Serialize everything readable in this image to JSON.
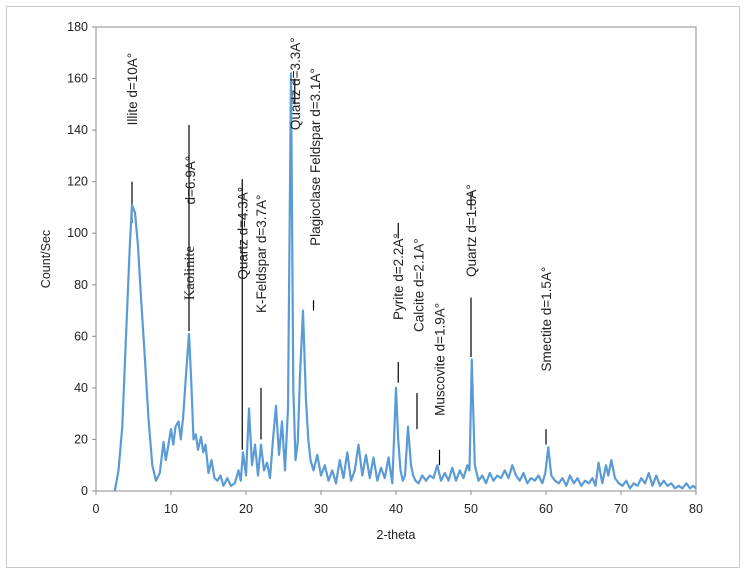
{
  "chart_data": {
    "type": "line",
    "title": "",
    "xlabel": "2-theta",
    "ylabel": "Count/Sec",
    "xlim": [
      0,
      80
    ],
    "ylim": [
      0,
      180
    ],
    "xticks": [
      0,
      10,
      20,
      30,
      40,
      50,
      60,
      70,
      80
    ],
    "yticks": [
      0,
      20,
      40,
      60,
      80,
      100,
      120,
      140,
      160,
      180
    ],
    "grid": false,
    "legend": "none",
    "line_color": "#5b9bd5",
    "series": [
      {
        "x": [
          2.5,
          3.0,
          3.5,
          4.0,
          4.5,
          4.8,
          5.2,
          5.6,
          6.0,
          6.5,
          7.0,
          7.5,
          8.0,
          8.5,
          9.0,
          9.3,
          9.6,
          10.0,
          10.3,
          10.6,
          11.0,
          11.3,
          11.6,
          12.0,
          12.4,
          12.7,
          13.0,
          13.3,
          13.6,
          14.0,
          14.3,
          14.6,
          15.0,
          15.4,
          15.8,
          16.2,
          16.6,
          17.0,
          17.5,
          18.0,
          18.5,
          19.0,
          19.3,
          19.6,
          20.0,
          20.4,
          20.8,
          21.2,
          21.6,
          22.0,
          22.4,
          22.8,
          23.2,
          23.6,
          24.0,
          24.4,
          24.8,
          25.2,
          25.6,
          26.0,
          26.3,
          26.6,
          26.9,
          27.2,
          27.6,
          28.0,
          28.3,
          28.6,
          29.0,
          29.5,
          30.0,
          30.5,
          31.0,
          31.5,
          32.0,
          32.5,
          33.0,
          33.5,
          34.0,
          34.5,
          35.0,
          35.5,
          36.0,
          36.5,
          37.0,
          37.5,
          38.0,
          38.5,
          39.0,
          39.5,
          40.0,
          40.3,
          40.6,
          40.9,
          41.2,
          41.6,
          42.0,
          42.3,
          42.6,
          43.0,
          43.5,
          44.0,
          44.5,
          45.0,
          45.5,
          46.0,
          46.5,
          47.0,
          47.5,
          48.0,
          48.5,
          49.0,
          49.5,
          49.8,
          50.1,
          50.5,
          51.0,
          51.5,
          52.0,
          52.5,
          53.0,
          53.5,
          54.0,
          54.5,
          55.0,
          55.5,
          56.0,
          56.5,
          57.0,
          57.5,
          58.0,
          58.5,
          59.0,
          59.5,
          59.9,
          60.3,
          60.7,
          61.2,
          61.7,
          62.2,
          62.7,
          63.2,
          63.7,
          64.2,
          64.7,
          65.2,
          65.7,
          66.2,
          66.6,
          67.0,
          67.5,
          68.0,
          68.3,
          68.7,
          69.2,
          69.7,
          70.2,
          70.7,
          71.2,
          71.7,
          72.2,
          72.7,
          73.2,
          73.7,
          74.2,
          74.7,
          75.2,
          75.7,
          76.2,
          76.7,
          77.2,
          77.7,
          78.2,
          78.7,
          79.2,
          79.6,
          80.0
        ],
        "y": [
          0,
          8,
          25,
          60,
          95,
          111,
          108,
          95,
          75,
          52,
          28,
          10,
          4,
          7,
          19,
          12,
          17,
          24,
          18,
          25,
          27,
          20,
          28,
          45,
          61,
          42,
          20,
          22,
          16,
          21,
          15,
          18,
          7,
          12,
          5,
          4,
          6,
          2,
          5,
          2,
          3,
          8,
          4,
          15,
          6,
          32,
          10,
          18,
          6,
          18,
          8,
          11,
          5,
          20,
          33,
          14,
          27,
          8,
          32,
          162,
          40,
          12,
          19,
          45,
          70,
          35,
          20,
          12,
          8,
          14,
          6,
          10,
          4,
          8,
          3,
          12,
          5,
          15,
          4,
          8,
          18,
          6,
          14,
          5,
          13,
          4,
          9,
          5,
          13,
          3,
          40,
          20,
          8,
          4,
          6,
          25,
          10,
          6,
          4,
          3,
          6,
          4,
          6,
          5,
          10,
          4,
          7,
          4,
          9,
          4,
          8,
          5,
          10,
          8,
          51,
          10,
          4,
          6,
          3,
          7,
          4,
          6,
          5,
          8,
          5,
          10,
          6,
          4,
          7,
          3,
          5,
          4,
          6,
          3,
          7,
          17,
          6,
          4,
          3,
          5,
          2,
          6,
          3,
          5,
          2,
          4,
          3,
          5,
          2,
          11,
          3,
          10,
          6,
          12,
          5,
          3,
          2,
          4,
          1,
          3,
          2,
          5,
          3,
          7,
          2,
          6,
          2,
          4,
          2,
          3,
          1,
          2,
          1,
          3,
          1,
          2,
          1
        ]
      }
    ],
    "annotations": [
      {
        "text": "Illite d=10A°",
        "x": 4.8,
        "label_top": 170,
        "rotated": true
      },
      {
        "text": "d=6.9A°",
        "x": 12.5,
        "label_top": 130,
        "rotated": true
      },
      {
        "text": "Kaolinite",
        "x": 12.4,
        "label_top": 95,
        "rotated": true,
        "serif": true
      },
      {
        "text": "Quartz d=4.3A°",
        "x": 19.5,
        "label_top": 118,
        "rotated": true
      },
      {
        "text": "K-Feldspar d=3.7A°",
        "x": 22.0,
        "label_top": 115,
        "rotated": true
      },
      {
        "text": "Quartz d=3.3A°",
        "x": 26.5,
        "label_top": 176,
        "rotated": true
      },
      {
        "text": "Plagioclase Feldspar d=3.1A°",
        "x": 29.2,
        "label_top": 164,
        "rotated": true
      },
      {
        "text": "Pyrite d=2.2A°",
        "x": 40.3,
        "label_top": 100,
        "rotated": true
      },
      {
        "text": "Calcite d=2.1A°",
        "x": 43.0,
        "label_top": 98,
        "rotated": true
      },
      {
        "text": "Muscovite d=1.9A°",
        "x": 45.8,
        "label_top": 73,
        "rotated": true
      },
      {
        "text": "Quartz d=1.8A°",
        "x": 50.0,
        "label_top": 119,
        "rotated": true
      },
      {
        "text": "Smectite d=1.5A°",
        "x": 60.0,
        "label_top": 87,
        "rotated": true
      }
    ],
    "leader_lines": [
      {
        "x": 4.8,
        "y1": 104,
        "y2": 120
      },
      {
        "x": 12.4,
        "y1": 62,
        "y2": 142
      },
      {
        "x": 19.5,
        "y1": 16,
        "y2": 121
      },
      {
        "x": 22.0,
        "y1": 20,
        "y2": 40
      },
      {
        "x": 26.5,
        "y1": 150,
        "y2": 160
      },
      {
        "x": 29.0,
        "y1": 70,
        "y2": 74
      },
      {
        "x": 40.3,
        "y1": 42,
        "y2": 50
      },
      {
        "x": 40.3,
        "y1": 98,
        "y2": 104
      },
      {
        "x": 42.8,
        "y1": 24,
        "y2": 38
      },
      {
        "x": 45.8,
        "y1": 10,
        "y2": 16
      },
      {
        "x": 50.0,
        "y1": 52,
        "y2": 75
      },
      {
        "x": 50.0,
        "y1": 109,
        "y2": 116
      },
      {
        "x": 60.0,
        "y1": 18,
        "y2": 24
      }
    ]
  }
}
